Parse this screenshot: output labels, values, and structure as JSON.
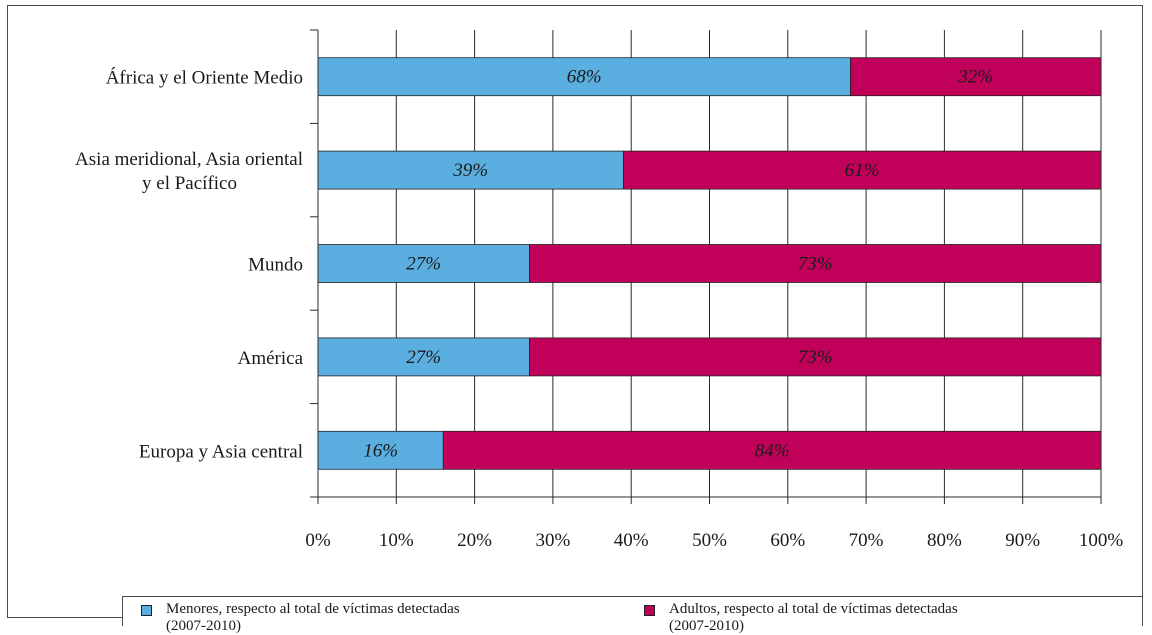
{
  "chart_data": {
    "type": "bar",
    "orientation": "horizontal",
    "stacked": true,
    "categories": [
      [
        "África y el Oriente Medio"
      ],
      [
        "Asia meridional, Asia oriental",
        "y el Pacífico"
      ],
      [
        "Mundo"
      ],
      [
        "América"
      ],
      [
        "Europa y Asia central"
      ]
    ],
    "series": [
      {
        "name": "Menores, respecto al total de víctimas detectadas (2007-2010)",
        "color": "#5bafe0",
        "values": [
          68,
          39,
          27,
          27,
          16
        ],
        "labels": [
          "68%",
          "39%",
          "27%",
          "27%",
          "16%"
        ]
      },
      {
        "name": "Adultos, respecto al total de víctimas detectadas (2007-2010)",
        "color": "#c1005a",
        "values": [
          32,
          61,
          73,
          73,
          84
        ],
        "labels": [
          "32%",
          "61%",
          "73%",
          "73%",
          "84%"
        ]
      }
    ],
    "xlim": [
      0,
      100
    ],
    "xticks": [
      "0%",
      "10%",
      "20%",
      "30%",
      "40%",
      "50%",
      "60%",
      "70%",
      "80%",
      "90%",
      "100%"
    ],
    "grid": "vertical",
    "legend": "bottom"
  },
  "legend": {
    "items": [
      {
        "line1": "Menores, respecto al total de víctimas detectadas",
        "line2": "(2007-2010)",
        "color": "#5bafe0"
      },
      {
        "line1": "Adultos, respecto al total de víctimas detectadas",
        "line2": "(2007-2010)",
        "color": "#c1005a"
      }
    ]
  }
}
